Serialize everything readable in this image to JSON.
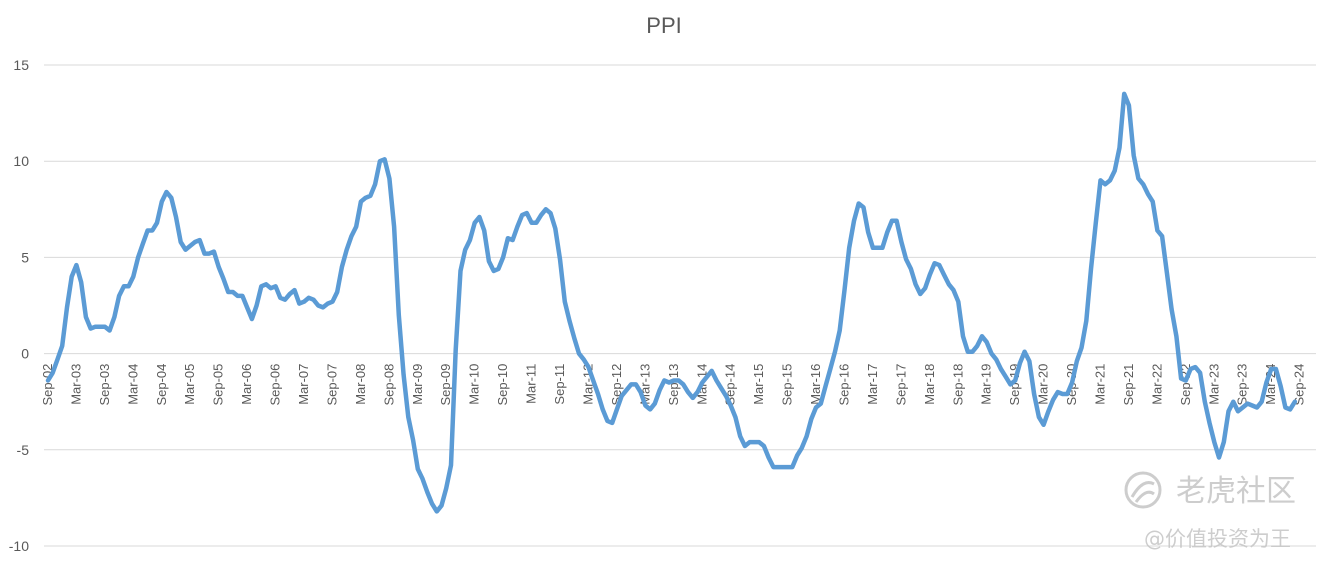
{
  "chart_data": {
    "type": "line",
    "title": "PPI",
    "xlabel": "",
    "ylabel": "",
    "ylim": [
      -10,
      15
    ],
    "yticks": [
      15,
      10,
      5,
      0,
      -5,
      -10
    ],
    "grid": true,
    "legend": "none",
    "x_start": "2002-09",
    "x_ticks": [
      "Sep-02",
      "Mar-03",
      "Sep-03",
      "Mar-04",
      "Sep-04",
      "Mar-05",
      "Sep-05",
      "Mar-06",
      "Sep-06",
      "Mar-07",
      "Sep-07",
      "Mar-08",
      "Sep-08",
      "Mar-09",
      "Sep-09",
      "Mar-10",
      "Sep-10",
      "Mar-11",
      "Sep-11",
      "Mar-12",
      "Sep-12",
      "Mar-13",
      "Sep-13",
      "Mar-14",
      "Sep-14",
      "Mar-15",
      "Sep-15",
      "Mar-16",
      "Sep-16",
      "Mar-17",
      "Sep-17",
      "Mar-18",
      "Sep-18",
      "Mar-19",
      "Sep-19",
      "Mar-20",
      "Sep-20",
      "Mar-21",
      "Sep-21",
      "Mar-22",
      "Sep-22",
      "Mar-23",
      "Sep-23",
      "Mar-24",
      "Sep-24"
    ],
    "series": [
      {
        "color": "#5b9bd5",
        "values": [
          -1.4,
          -1.0,
          -0.3,
          0.4,
          2.4,
          4.0,
          4.6,
          3.7,
          1.9,
          1.3,
          1.4,
          1.4,
          1.4,
          1.2,
          1.9,
          3.0,
          3.5,
          3.5,
          4.0,
          5.0,
          5.7,
          6.4,
          6.4,
          6.8,
          7.9,
          8.4,
          8.1,
          7.1,
          5.8,
          5.4,
          5.6,
          5.8,
          5.9,
          5.2,
          5.2,
          5.3,
          4.5,
          3.9,
          3.2,
          3.2,
          3.0,
          3.0,
          2.4,
          1.8,
          2.5,
          3.5,
          3.6,
          3.4,
          3.5,
          2.9,
          2.8,
          3.1,
          3.3,
          2.6,
          2.7,
          2.9,
          2.8,
          2.5,
          2.4,
          2.6,
          2.7,
          3.2,
          4.5,
          5.4,
          6.1,
          6.6,
          7.9,
          8.1,
          8.2,
          8.8,
          10.0,
          10.1,
          9.1,
          6.6,
          2.0,
          -1.1,
          -3.3,
          -4.5,
          -6.0,
          -6.5,
          -7.2,
          -7.8,
          -8.2,
          -7.9,
          -7.0,
          -5.8,
          0.2,
          4.3,
          5.4,
          5.9,
          6.8,
          7.1,
          6.4,
          4.8,
          4.3,
          4.4,
          5.0,
          6.0,
          5.9,
          6.6,
          7.2,
          7.3,
          6.8,
          6.8,
          7.2,
          7.5,
          7.3,
          6.5,
          4.9,
          2.7,
          1.7,
          0.8,
          0.0,
          -0.3,
          -0.7,
          -1.4,
          -2.1,
          -2.9,
          -3.5,
          -3.6,
          -2.9,
          -2.2,
          -1.9,
          -1.6,
          -1.6,
          -2.0,
          -2.7,
          -2.9,
          -2.6,
          -1.9,
          -1.4,
          -1.5,
          -1.4,
          -1.4,
          -1.6,
          -2.0,
          -2.3,
          -2.0,
          -1.5,
          -1.2,
          -0.9,
          -1.4,
          -1.8,
          -2.2,
          -2.7,
          -3.3,
          -4.3,
          -4.8,
          -4.6,
          -4.6,
          -4.6,
          -4.8,
          -5.4,
          -5.9,
          -5.9,
          -5.9,
          -5.9,
          -5.9,
          -5.3,
          -4.9,
          -4.3,
          -3.4,
          -2.8,
          -2.6,
          -1.7,
          -0.8,
          0.1,
          1.2,
          3.3,
          5.5,
          6.9,
          7.8,
          7.6,
          6.3,
          5.5,
          5.5,
          5.5,
          6.3,
          6.9,
          6.9,
          5.8,
          4.9,
          4.4,
          3.6,
          3.1,
          3.4,
          4.1,
          4.7,
          4.6,
          4.1,
          3.6,
          3.3,
          2.7,
          0.9,
          0.1,
          0.1,
          0.4,
          0.9,
          0.6,
          0.0,
          -0.3,
          -0.8,
          -1.2,
          -1.6,
          -1.4,
          -0.5,
          0.1,
          -0.4,
          -2.1,
          -3.3,
          -3.7,
          -3.0,
          -2.4,
          -2.0,
          -2.1,
          -2.1,
          -1.5,
          -0.4,
          0.3,
          1.7,
          4.4,
          6.8,
          9.0,
          8.8,
          9.0,
          9.5,
          10.7,
          13.5,
          12.9,
          10.3,
          9.1,
          8.8,
          8.3,
          7.9,
          6.4,
          6.1,
          4.2,
          2.3,
          0.9,
          -1.3,
          -1.4,
          -0.8,
          -0.7,
          -1.0,
          -2.5,
          -3.6,
          -4.6,
          -5.4,
          -4.6,
          -3.0,
          -2.5,
          -3.0,
          -2.8,
          -2.6,
          -2.7,
          -2.8,
          -2.5,
          -1.5,
          -0.8,
          -0.8,
          -1.7,
          -2.8,
          -2.9,
          -2.5
        ]
      }
    ]
  },
  "watermark": {
    "brand": "老虎社区",
    "account": "@价值投资为王"
  }
}
